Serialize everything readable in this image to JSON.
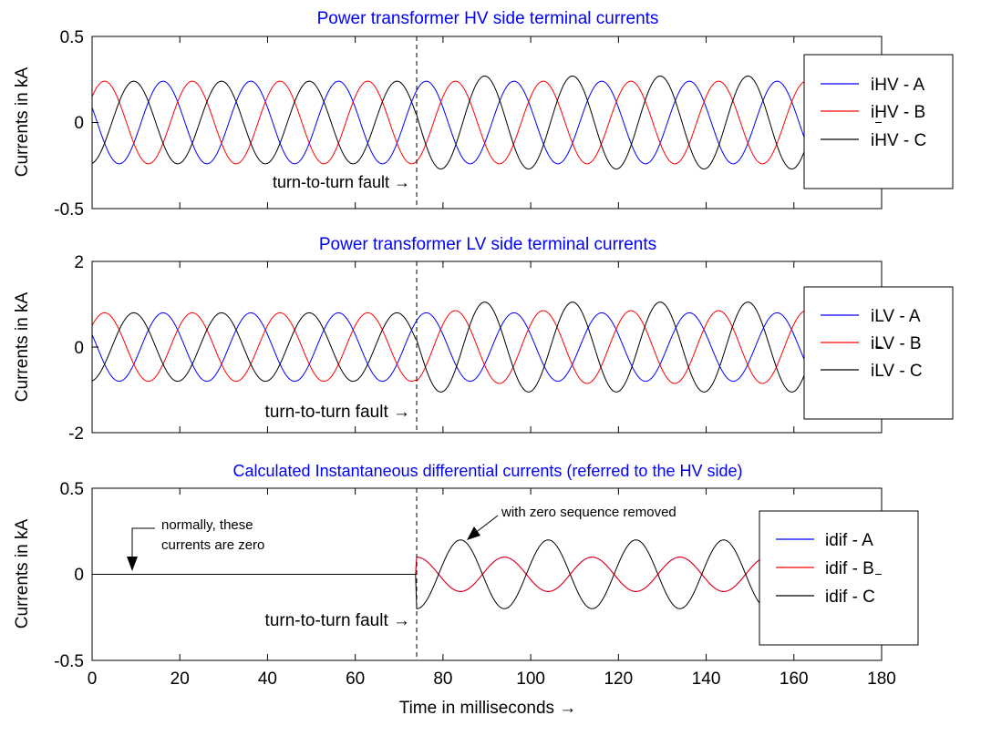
{
  "figure": {
    "xlabel": "Time in milliseconds →",
    "xticks": [
      "0",
      "20",
      "40",
      "60",
      "80",
      "100",
      "120",
      "140",
      "160",
      "180"
    ]
  },
  "chart_data": [
    {
      "type": "line",
      "title": "Power transformer HV side terminal currents",
      "xlabel": "Time in milliseconds →",
      "ylabel": "Currents in kA",
      "xlim": [
        0,
        180
      ],
      "ylim": [
        -0.5,
        0.5
      ],
      "yticks": [
        "0.5",
        "0",
        "-0.5"
      ],
      "fault_time_ms": 74,
      "fault_label": "turn-to-turn fault →",
      "frequency_hz": 50,
      "legend_position": "right",
      "legend": [
        "iHV - A",
        "iHV - B",
        "iHV - C"
      ],
      "series": [
        {
          "name": "iHV - A",
          "color": "#0000ff",
          "amplitude_pre": 0.24,
          "amplitude_post": 0.24
        },
        {
          "name": "iHV - B",
          "color": "#ff0000",
          "amplitude_pre": 0.24,
          "amplitude_post": 0.24
        },
        {
          "name": "iHV - C",
          "color": "#000000",
          "amplitude_pre": 0.24,
          "amplitude_post": 0.27
        }
      ]
    },
    {
      "type": "line",
      "title": "Power transformer LV side terminal currents",
      "xlabel": "Time in milliseconds →",
      "ylabel": "Currents in kA",
      "xlim": [
        0,
        180
      ],
      "ylim": [
        -2,
        2
      ],
      "yticks": [
        "2",
        "0",
        "-2"
      ],
      "fault_time_ms": 74,
      "fault_label": "turn-to-turn fault →",
      "frequency_hz": 50,
      "legend_position": "right",
      "legend": [
        "iLV - A",
        "iLV - B",
        "iLV - C"
      ],
      "series": [
        {
          "name": "iLV - A",
          "color": "#0000ff",
          "amplitude_pre": 0.8,
          "amplitude_post": 0.8
        },
        {
          "name": "iLV - B",
          "color": "#ff0000",
          "amplitude_pre": 0.8,
          "amplitude_post": 0.85
        },
        {
          "name": "iLV - C",
          "color": "#000000",
          "amplitude_pre": 0.8,
          "amplitude_post": 1.05
        }
      ]
    },
    {
      "type": "line",
      "title": "Calculated Instantaneous differential currents (referred to the HV side)",
      "xlabel": "Time in milliseconds →",
      "ylabel": "Currents in kA",
      "xlim": [
        0,
        180
      ],
      "ylim": [
        -0.5,
        0.5
      ],
      "yticks": [
        "0.5",
        "0",
        "-0.5"
      ],
      "fault_time_ms": 74,
      "fault_label": "turn-to-turn fault →",
      "frequency_hz": 50,
      "legend_position": "right",
      "legend": [
        "idif - A",
        "idif - B",
        "idif - C"
      ],
      "annotations": [
        {
          "text_lines": [
            "normally, these",
            "currents are zero"
          ],
          "x": 9,
          "y": 0
        },
        {
          "text_lines": [
            "with zero sequence removed"
          ],
          "x": 84,
          "y": 0.2
        }
      ],
      "series": [
        {
          "name": "idif - A",
          "color": "#0000ff",
          "amplitude_pre": 0,
          "amplitude_post": 0.1
        },
        {
          "name": "idif - B",
          "color": "#ff0000",
          "amplitude_pre": 0,
          "amplitude_post": 0.1
        },
        {
          "name": "idif - C",
          "color": "#000000",
          "amplitude_pre": 0,
          "amplitude_post": 0.2
        }
      ]
    }
  ]
}
